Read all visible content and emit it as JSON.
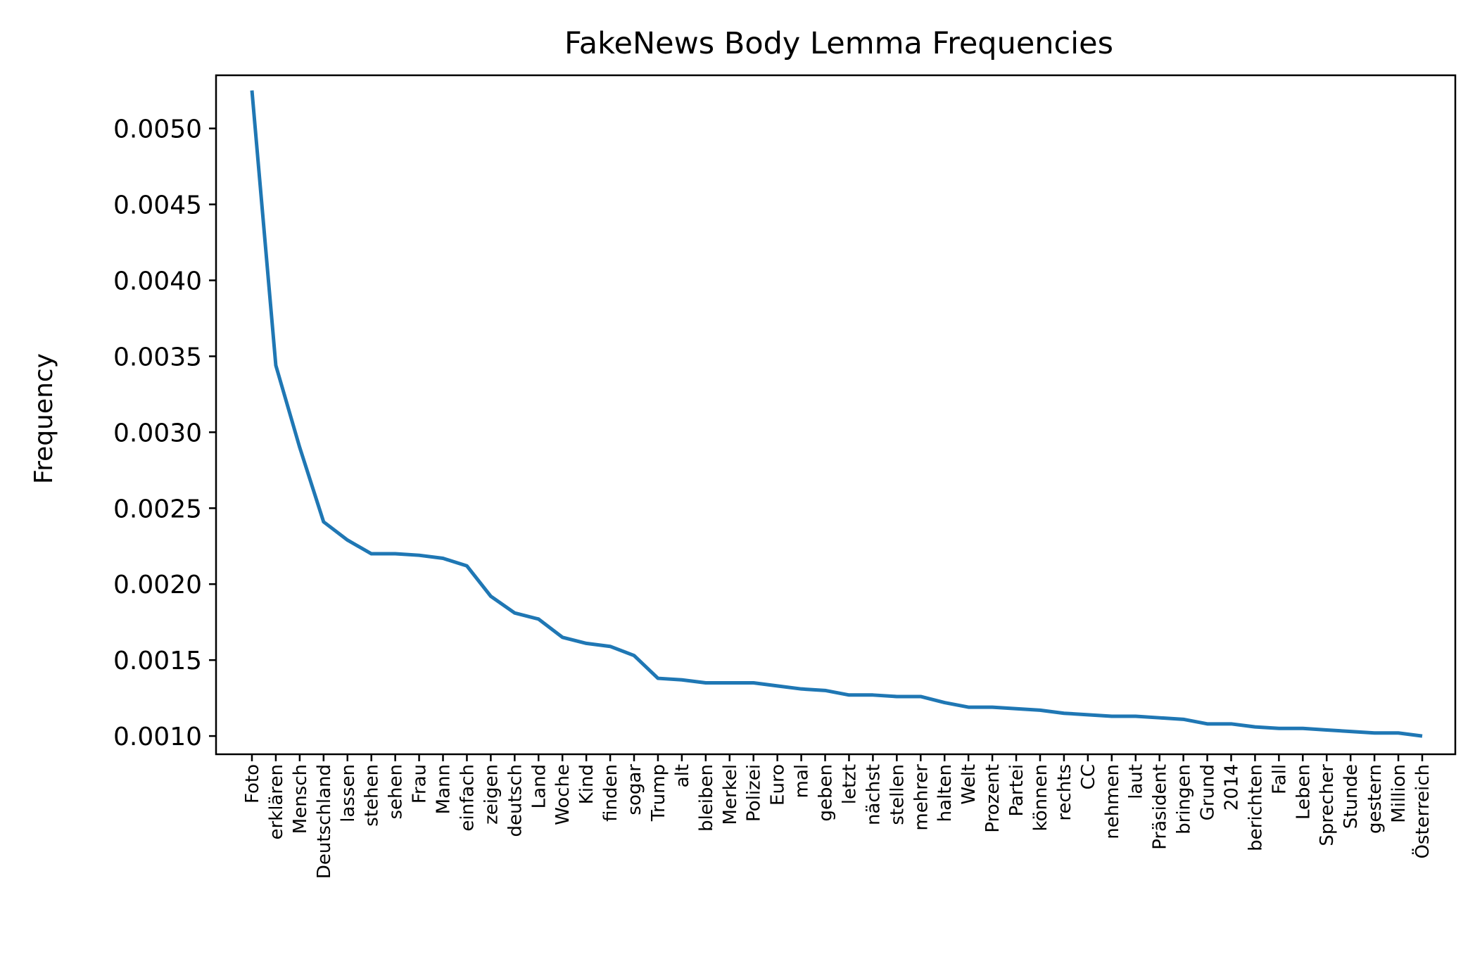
{
  "chart_data": {
    "type": "line",
    "title": "FakeNews Body Lemma Frequencies",
    "xlabel": "",
    "ylabel": "Frequency",
    "ylim": [
      0.00088,
      0.00535
    ],
    "yticks": [
      0.001,
      0.0015,
      0.002,
      0.0025,
      0.003,
      0.0035,
      0.004,
      0.0045,
      0.005
    ],
    "ytick_labels": [
      "0.0010",
      "0.0015",
      "0.0020",
      "0.0025",
      "0.0030",
      "0.0035",
      "0.0040",
      "0.0045",
      "0.0050"
    ],
    "grid": false,
    "legend": "none",
    "line_color": "#1f77b4",
    "categories": [
      "Foto",
      "erklären",
      "Mensch",
      "Deutschland",
      "lassen",
      "stehen",
      "sehen",
      "Frau",
      "Mann",
      "einfach",
      "zeigen",
      "deutsch",
      "Land",
      "Woche",
      "Kind",
      "finden",
      "sogar",
      "Trump",
      "alt",
      "bleiben",
      "Merkel",
      "Polizei",
      "Euro",
      "mal",
      "geben",
      "letzt",
      "nächst",
      "stellen",
      "mehrer",
      "halten",
      "Welt",
      "Prozent",
      "Partei",
      "können",
      "rechts",
      "CC",
      "nehmen",
      "laut",
      "Präsident",
      "bringen",
      "Grund",
      "2014",
      "berichten",
      "Fall",
      "Leben",
      "Sprecher",
      "Stunde",
      "gestern",
      "Million",
      "Österreich"
    ],
    "values": [
      0.00525,
      0.00344,
      0.0029,
      0.00241,
      0.00229,
      0.0022,
      0.0022,
      0.00219,
      0.00217,
      0.00212,
      0.00192,
      0.00181,
      0.00177,
      0.00165,
      0.00161,
      0.00159,
      0.00153,
      0.00138,
      0.00137,
      0.00135,
      0.00135,
      0.00135,
      0.00133,
      0.00131,
      0.0013,
      0.00127,
      0.00127,
      0.00126,
      0.00126,
      0.00122,
      0.00119,
      0.00119,
      0.00118,
      0.00117,
      0.00115,
      0.00114,
      0.00113,
      0.00113,
      0.00112,
      0.00111,
      0.00108,
      0.00108,
      0.00106,
      0.00105,
      0.00105,
      0.00104,
      0.00103,
      0.00102,
      0.00102,
      0.001
    ]
  }
}
